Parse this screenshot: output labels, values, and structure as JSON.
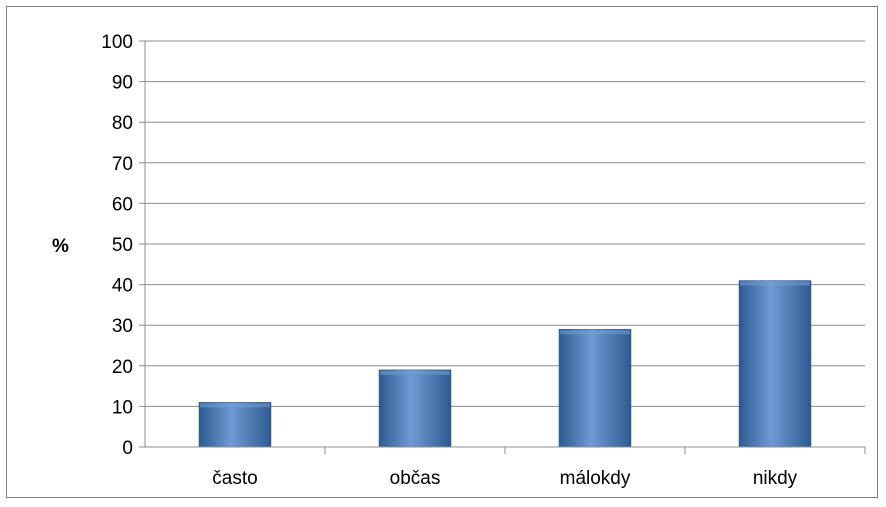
{
  "chart_data": {
    "type": "bar",
    "categories": [
      "často",
      "občas",
      "málokdy",
      "nikdy"
    ],
    "values": [
      11,
      19,
      29,
      41
    ],
    "title": "",
    "xlabel": "",
    "ylabel": "%",
    "ylim": [
      0,
      100
    ],
    "yticks": [
      "0",
      "10",
      "20",
      "30",
      "40",
      "50",
      "60",
      "70",
      "80",
      "90",
      "100"
    ],
    "grid": true,
    "legend": "none",
    "colors": {
      "bar": "#4a7ebb",
      "bar_light": "#6f9bd4",
      "bar_dark": "#2c5a8f",
      "grid": "#8c8c8c",
      "axis": "#8c8c8c"
    }
  }
}
